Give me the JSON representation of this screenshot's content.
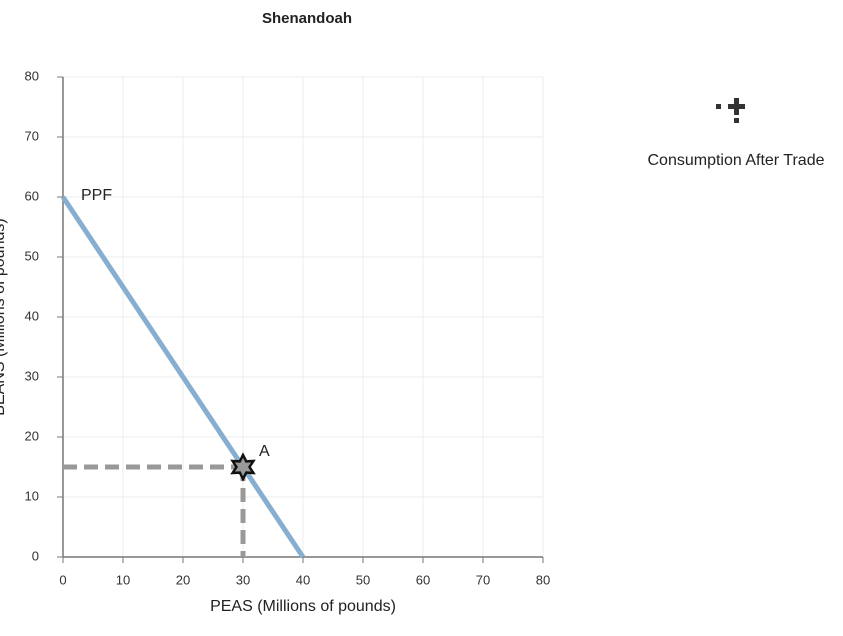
{
  "chart_data": {
    "type": "line",
    "title": "Shenandoah",
    "xlabel": "PEAS (Millions of pounds)",
    "ylabel": "BEANS (Millions of pounds)",
    "xlim": [
      0,
      80
    ],
    "ylim": [
      0,
      80
    ],
    "xticks": [
      0,
      10,
      20,
      30,
      40,
      50,
      60,
      70,
      80
    ],
    "yticks": [
      0,
      10,
      20,
      30,
      40,
      50,
      60,
      70,
      80
    ],
    "grid": true,
    "series": [
      {
        "name": "PPF",
        "color": "#86aed1",
        "x": [
          0,
          40
        ],
        "values": [
          60,
          0
        ]
      }
    ],
    "points": [
      {
        "label": "A",
        "x": 30,
        "y": 15,
        "color": "#999999"
      }
    ],
    "legend_items": [
      {
        "name": "Consumption After Trade"
      }
    ]
  }
}
